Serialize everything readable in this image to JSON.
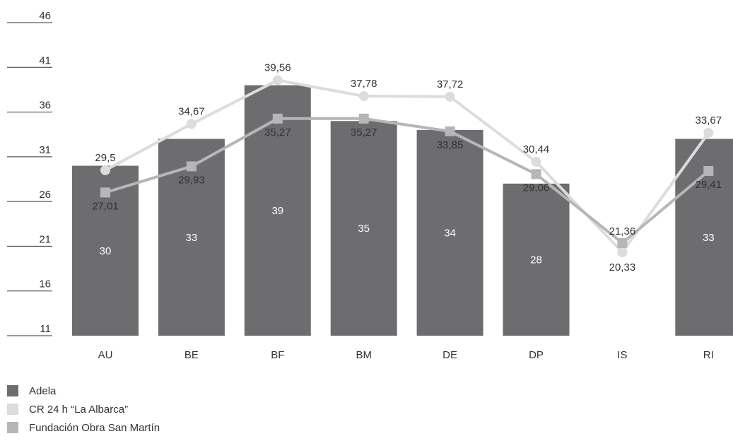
{
  "chart_data": {
    "type": "bar",
    "categories": [
      "AU",
      "BE",
      "BF",
      "BM",
      "DE",
      "DP",
      "IS",
      "RI"
    ],
    "y_ticks": [
      "46",
      "41",
      "36",
      "31",
      "26",
      "21",
      "16",
      "11"
    ],
    "ylim": [
      11,
      46
    ],
    "series": [
      {
        "name": "Adela",
        "type": "bar",
        "color": "#6d6d70",
        "values": [
          30,
          33,
          39,
          35,
          34,
          28,
          null,
          33
        ],
        "labels": [
          "30",
          "33",
          "39",
          "35",
          "34",
          "28",
          "",
          "33"
        ]
      },
      {
        "name": "CR 24 h “La Albarca”",
        "type": "line",
        "marker": "circle",
        "color": "#dcdcdc",
        "values": [
          29.5,
          34.67,
          39.56,
          37.78,
          37.72,
          30.44,
          20.33,
          33.67
        ],
        "labels": [
          "29,5",
          "34,67",
          "39,56",
          "37,78",
          "37,72",
          "30,44",
          "20,33",
          "33,67"
        ]
      },
      {
        "name": "Fundación Obra San Martín",
        "type": "line",
        "marker": "square",
        "color": "#b6b6b8",
        "values": [
          27.01,
          29.93,
          35.27,
          35.27,
          33.85,
          29.06,
          21.36,
          29.41
        ],
        "labels": [
          "27,01",
          "29,93",
          "35,27",
          "35,27",
          "33,85",
          "29,06",
          "21,36",
          "29,41"
        ]
      }
    ],
    "legend_position": "bottom-left"
  }
}
